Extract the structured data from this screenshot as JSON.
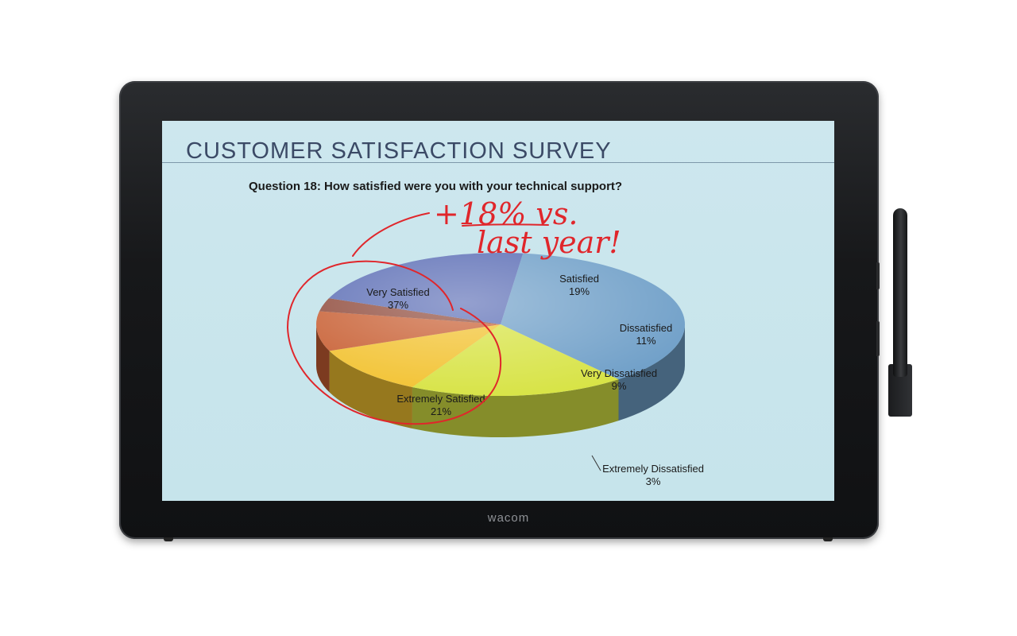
{
  "device": {
    "brand_logo": "wacom"
  },
  "slide": {
    "title": "CUSTOMER  SATISFACTION  SURVEY",
    "question": "Question 18: How satisfied were you with your technical support?"
  },
  "annotation": {
    "line1": "+18% vs.",
    "line2": "last year!"
  },
  "colors": {
    "ink": "#e0262b",
    "very_satisfied": "#6f9fc8",
    "satisfied": "#d7e344",
    "dissatisfied": "#f2c230",
    "very_dissatisfied": "#c85f33",
    "extremely_dissatisfied": "#8f4a3b",
    "extremely_satisfied": "#5b6db5"
  },
  "chart_data": {
    "type": "pie",
    "title": "CUSTOMER  SATISFACTION  SURVEY",
    "subtitle": "Question 18: How satisfied were you with your technical support?",
    "three_d": true,
    "slices": [
      {
        "label": "Very Satisfied",
        "value": 37,
        "value_label": "37%"
      },
      {
        "label": "Satisfied",
        "value": 19,
        "value_label": "19%"
      },
      {
        "label": "Dissatisfied",
        "value": 11,
        "value_label": "11%"
      },
      {
        "label": "Very Dissatisfied",
        "value": 9,
        "value_label": "9%"
      },
      {
        "label": "Extremely Dissatisfied",
        "value": 3,
        "value_label": "3%"
      },
      {
        "label": "Extremely Satisfied",
        "value": 21,
        "value_label": "21%"
      }
    ],
    "legend": "none"
  }
}
